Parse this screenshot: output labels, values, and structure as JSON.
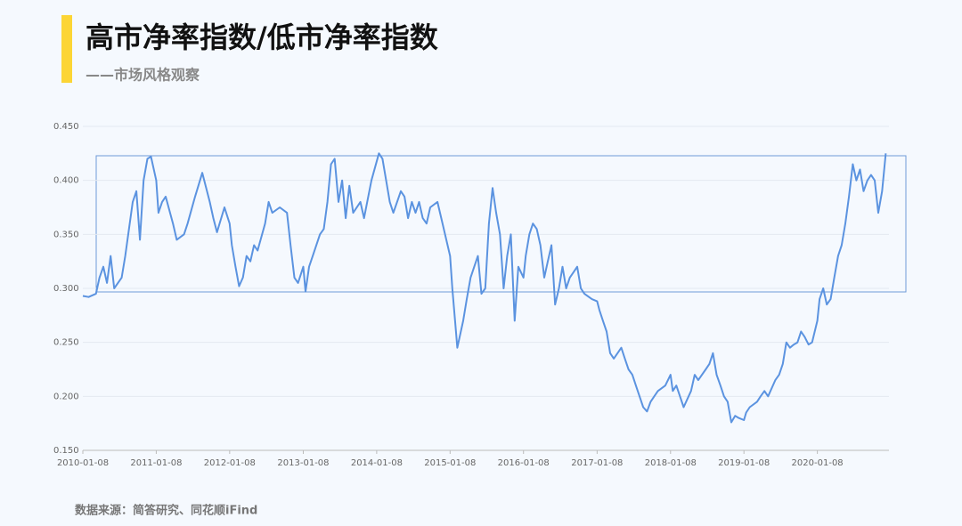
{
  "chart_data": {
    "type": "line",
    "title": "高市净率指数/低市净率指数",
    "subtitle": "——市场风格观察",
    "source": "数据来源：简答研究、同花顺iFind",
    "color": "#5b93e0",
    "x": [
      "2010-01-08",
      "2010-02-06",
      "2010-03-14",
      "2010-04-01",
      "2010-04-20",
      "2010-05-08",
      "2010-05-26",
      "2010-06-13",
      "2010-07-20",
      "2010-08-07",
      "2010-09-13",
      "2010-10-01",
      "2010-10-19",
      "2010-11-06",
      "2010-11-25",
      "2010-12-13",
      "2011-01-08",
      "2011-01-19",
      "2011-02-06",
      "2011-02-24",
      "2011-04-01",
      "2011-04-20",
      "2011-05-26",
      "2011-06-13",
      "2011-07-20",
      "2011-08-25",
      "2011-10-01",
      "2011-10-19",
      "2011-11-06",
      "2011-12-13",
      "2012-01-08",
      "2012-01-19",
      "2012-02-06",
      "2012-02-24",
      "2012-03-14",
      "2012-04-01",
      "2012-04-20",
      "2012-05-08",
      "2012-05-26",
      "2012-07-02",
      "2012-07-20",
      "2012-08-07",
      "2012-09-13",
      "2012-10-19",
      "2012-11-06",
      "2012-11-25",
      "2012-12-13",
      "2013-01-08",
      "2013-01-19",
      "2013-02-06",
      "2013-02-24",
      "2013-04-01",
      "2013-04-20",
      "2013-05-08",
      "2013-05-26",
      "2013-06-13",
      "2013-07-02",
      "2013-07-20",
      "2013-08-07",
      "2013-08-25",
      "2013-09-13",
      "2013-10-19",
      "2013-11-06",
      "2013-12-13",
      "2014-01-19",
      "2014-02-06",
      "2014-02-24",
      "2014-03-14",
      "2014-04-01",
      "2014-05-08",
      "2014-05-26",
      "2014-06-13",
      "2014-07-02",
      "2014-07-20",
      "2014-08-07",
      "2014-08-25",
      "2014-09-13",
      "2014-10-01",
      "2014-11-06",
      "2014-11-25",
      "2015-01-08",
      "2015-01-19",
      "2015-02-06",
      "2015-02-13",
      "2015-03-14",
      "2015-04-01",
      "2015-04-20",
      "2015-05-08",
      "2015-05-26",
      "2015-06-13",
      "2015-07-02",
      "2015-07-20",
      "2015-08-07",
      "2015-08-25",
      "2015-09-13",
      "2015-10-01",
      "2015-10-19",
      "2015-11-06",
      "2015-11-25",
      "2015-12-13",
      "2016-01-08",
      "2016-01-19",
      "2016-02-06",
      "2016-02-24",
      "2016-03-14",
      "2016-04-01",
      "2016-04-20",
      "2016-05-08",
      "2016-05-26",
      "2016-06-13",
      "2016-07-02",
      "2016-07-20",
      "2016-08-07",
      "2016-08-25",
      "2016-09-13",
      "2016-10-01",
      "2016-10-19",
      "2016-11-06",
      "2016-12-13",
      "2017-01-08",
      "2017-01-19",
      "2017-02-06",
      "2017-02-24",
      "2017-03-14",
      "2017-04-01",
      "2017-05-08",
      "2017-05-26",
      "2017-06-13",
      "2017-07-02",
      "2017-07-20",
      "2017-08-07",
      "2017-08-25",
      "2017-09-13",
      "2017-10-01",
      "2017-10-19",
      "2017-11-06",
      "2017-12-13",
      "2018-01-08",
      "2018-01-19",
      "2018-02-06",
      "2018-02-24",
      "2018-03-14",
      "2018-04-20",
      "2018-05-08",
      "2018-05-26",
      "2018-07-02",
      "2018-07-20",
      "2018-08-07",
      "2018-08-25",
      "2018-09-13",
      "2018-10-01",
      "2018-10-19",
      "2018-11-06",
      "2018-11-25",
      "2018-12-13",
      "2019-01-08",
      "2019-01-19",
      "2019-02-06",
      "2019-03-14",
      "2019-04-01",
      "2019-04-20",
      "2019-05-08",
      "2019-06-13",
      "2019-07-02",
      "2019-07-20",
      "2019-08-07",
      "2019-08-25",
      "2019-09-13",
      "2019-10-01",
      "2019-10-19",
      "2019-11-06",
      "2019-11-25",
      "2019-12-13",
      "2020-01-08",
      "2020-01-19",
      "2020-02-06",
      "2020-02-24",
      "2020-03-14",
      "2020-04-01",
      "2020-04-20",
      "2020-05-08",
      "2020-05-26",
      "2020-06-13",
      "2020-07-02",
      "2020-07-20",
      "2020-08-07",
      "2020-08-25",
      "2020-09-13",
      "2020-10-01",
      "2020-10-19",
      "2020-11-06",
      "2020-11-25",
      "2020-12-13"
    ],
    "values": [
      0.293,
      0.292,
      0.295,
      0.31,
      0.32,
      0.305,
      0.33,
      0.3,
      0.31,
      0.33,
      0.38,
      0.39,
      0.345,
      0.4,
      0.42,
      0.422,
      0.4,
      0.37,
      0.38,
      0.385,
      0.36,
      0.345,
      0.35,
      0.36,
      0.385,
      0.407,
      0.38,
      0.365,
      0.352,
      0.375,
      0.36,
      0.34,
      0.32,
      0.302,
      0.31,
      0.33,
      0.325,
      0.34,
      0.335,
      0.36,
      0.38,
      0.37,
      0.375,
      0.37,
      0.34,
      0.31,
      0.305,
      0.32,
      0.297,
      0.32,
      0.33,
      0.35,
      0.355,
      0.38,
      0.415,
      0.42,
      0.38,
      0.4,
      0.365,
      0.395,
      0.37,
      0.38,
      0.365,
      0.4,
      0.425,
      0.42,
      0.4,
      0.38,
      0.37,
      0.39,
      0.385,
      0.365,
      0.38,
      0.37,
      0.38,
      0.365,
      0.36,
      0.375,
      0.38,
      0.365,
      0.33,
      0.3,
      0.26,
      0.245,
      0.27,
      0.29,
      0.31,
      0.32,
      0.33,
      0.295,
      0.3,
      0.36,
      0.393,
      0.37,
      0.35,
      0.3,
      0.33,
      0.35,
      0.27,
      0.32,
      0.31,
      0.33,
      0.35,
      0.36,
      0.355,
      0.34,
      0.31,
      0.325,
      0.34,
      0.285,
      0.3,
      0.32,
      0.3,
      0.31,
      0.315,
      0.32,
      0.3,
      0.295,
      0.29,
      0.288,
      0.28,
      0.27,
      0.26,
      0.24,
      0.235,
      0.245,
      0.235,
      0.225,
      0.22,
      0.21,
      0.2,
      0.19,
      0.186,
      0.195,
      0.2,
      0.205,
      0.21,
      0.22,
      0.205,
      0.21,
      0.2,
      0.19,
      0.205,
      0.22,
      0.215,
      0.225,
      0.23,
      0.24,
      0.22,
      0.21,
      0.2,
      0.195,
      0.176,
      0.182,
      0.18,
      0.178,
      0.185,
      0.19,
      0.195,
      0.2,
      0.205,
      0.2,
      0.215,
      0.22,
      0.23,
      0.25,
      0.245,
      0.248,
      0.25,
      0.26,
      0.255,
      0.248,
      0.25,
      0.27,
      0.29,
      0.3,
      0.285,
      0.29,
      0.31,
      0.33,
      0.34,
      0.36,
      0.385,
      0.415,
      0.4,
      0.41,
      0.39,
      0.4,
      0.405,
      0.4,
      0.37,
      0.39,
      0.425
    ],
    "xlim": [
      "2010-01-08",
      "2021-03-01"
    ],
    "xticks": [
      "2010-01-08",
      "2011-01-08",
      "2012-01-08",
      "2013-01-08",
      "2014-01-08",
      "2015-01-08",
      "2016-01-08",
      "2017-01-08",
      "2018-01-08",
      "2019-01-08",
      "2020-01-08"
    ],
    "ylim": [
      0.15,
      0.45
    ],
    "yticks": [
      {
        "value": 0.15,
        "label": "0.150"
      },
      {
        "value": 0.2,
        "label": "0.200"
      },
      {
        "value": 0.25,
        "label": "0.250"
      },
      {
        "value": 0.3,
        "label": "0.300"
      },
      {
        "value": 0.35,
        "label": "0.350"
      },
      {
        "value": 0.4,
        "label": "0.400"
      },
      {
        "value": 0.45,
        "label": "0.450"
      }
    ],
    "grid": true
  }
}
